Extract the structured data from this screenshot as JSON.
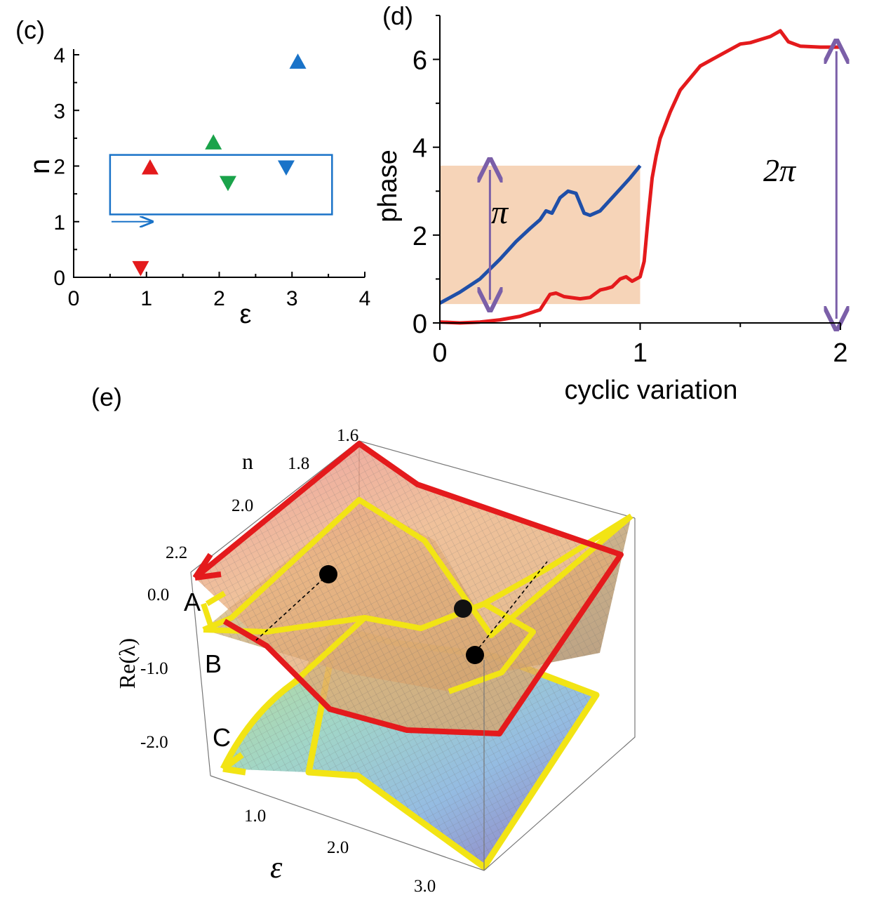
{
  "colors": {
    "red": "#e41a1c",
    "blue": "#1f4fa8",
    "green": "#1aa34a",
    "yellow": "#f2e414",
    "purple": "#7b5fa8",
    "peach": "#f6d4b8",
    "legend_blue": "#1a73c8"
  },
  "chart_data": [
    {
      "panel": "(c)",
      "type": "scatter",
      "xlabel": "ε",
      "ylabel": "n",
      "xlim": [
        0,
        4
      ],
      "ylim": [
        0,
        4
      ],
      "xticks": [
        "0",
        "1",
        "2",
        "3",
        "4"
      ],
      "yticks": [
        "0",
        "1",
        "2",
        "3",
        "4"
      ],
      "grid": false,
      "points": [
        {
          "x": 1.05,
          "y": 1.97,
          "marker": "triangle-up",
          "color": "#e41a1c"
        },
        {
          "x": 0.92,
          "y": 0.17,
          "marker": "triangle-down",
          "color": "#e41a1c"
        },
        {
          "x": 1.92,
          "y": 2.42,
          "marker": "triangle-up",
          "color": "#1aa34a"
        },
        {
          "x": 2.12,
          "y": 1.7,
          "marker": "triangle-down",
          "color": "#1aa34a"
        },
        {
          "x": 3.08,
          "y": 3.87,
          "marker": "triangle-up",
          "color": "#1a73c8"
        },
        {
          "x": 2.92,
          "y": 1.98,
          "marker": "triangle-down",
          "color": "#1a73c8"
        }
      ],
      "loop_rectangle": {
        "x": [
          0.5,
          3.55
        ],
        "y": [
          1.13,
          2.2
        ]
      },
      "direction_arrow": {
        "x": [
          0.52,
          1.08
        ],
        "y": 1.0
      }
    },
    {
      "panel": "(d)",
      "type": "line",
      "xlabel": "cyclic variation",
      "ylabel": "phase",
      "xlim": [
        0,
        2
      ],
      "ylim": [
        0,
        7
      ],
      "xticks": [
        "0",
        "1",
        "2"
      ],
      "yticks": [
        "0",
        "2",
        "4",
        "6"
      ],
      "grid": false,
      "series": [
        {
          "color": "#1f4fa8",
          "x": [
            0,
            0.1,
            0.2,
            0.3,
            0.38,
            0.45,
            0.5,
            0.53,
            0.56,
            0.6,
            0.64,
            0.68,
            0.72,
            0.75,
            0.8,
            0.85,
            0.9,
            0.95,
            1.0
          ],
          "y": [
            0.45,
            0.7,
            1.0,
            1.45,
            1.85,
            2.15,
            2.35,
            2.55,
            2.5,
            2.85,
            3.0,
            2.95,
            2.5,
            2.45,
            2.55,
            2.8,
            3.05,
            3.3,
            3.58
          ]
        },
        {
          "color": "#e41a1c",
          "x": [
            0,
            0.1,
            0.2,
            0.3,
            0.4,
            0.5,
            0.55,
            0.58,
            0.62,
            0.7,
            0.75,
            0.8,
            0.83,
            0.86,
            0.9,
            0.93,
            0.96,
            0.98,
            1.0,
            1.02,
            1.04,
            1.06,
            1.08,
            1.1,
            1.15,
            1.2,
            1.3,
            1.4,
            1.5,
            1.55,
            1.6,
            1.65,
            1.7,
            1.74,
            1.8,
            1.9,
            2.0
          ],
          "y": [
            0.02,
            0.0,
            0.02,
            0.07,
            0.15,
            0.3,
            0.65,
            0.68,
            0.6,
            0.55,
            0.58,
            0.75,
            0.78,
            0.82,
            1.0,
            1.05,
            0.95,
            1.0,
            1.05,
            1.4,
            2.4,
            3.3,
            3.8,
            4.2,
            4.8,
            5.3,
            5.85,
            6.1,
            6.35,
            6.38,
            6.45,
            6.52,
            6.65,
            6.4,
            6.3,
            6.28,
            6.28
          ]
        }
      ],
      "shaded_region": {
        "x": [
          0,
          1
        ],
        "y": [
          0.43,
          3.58
        ],
        "color": "#f6d4b8"
      },
      "annotations": [
        {
          "text": "π",
          "x": 0.25,
          "y_range": [
            0.43,
            3.58
          ]
        },
        {
          "text": "2π",
          "x": 1.98,
          "y_range": [
            0,
            6.28
          ]
        }
      ]
    },
    {
      "panel": "(e)",
      "type": "surface",
      "xlabel": "ε",
      "ylabel": "n",
      "zlabel": "Re(λ)",
      "xticks": [
        "1.0",
        "2.0",
        "3.0"
      ],
      "yticks": [
        "1.6",
        "1.8",
        "2.0",
        "2.2"
      ],
      "zticks": [
        "0.0",
        "-1.0",
        "-2.0"
      ],
      "sheet_labels": [
        "A",
        "B",
        "C"
      ]
    }
  ]
}
